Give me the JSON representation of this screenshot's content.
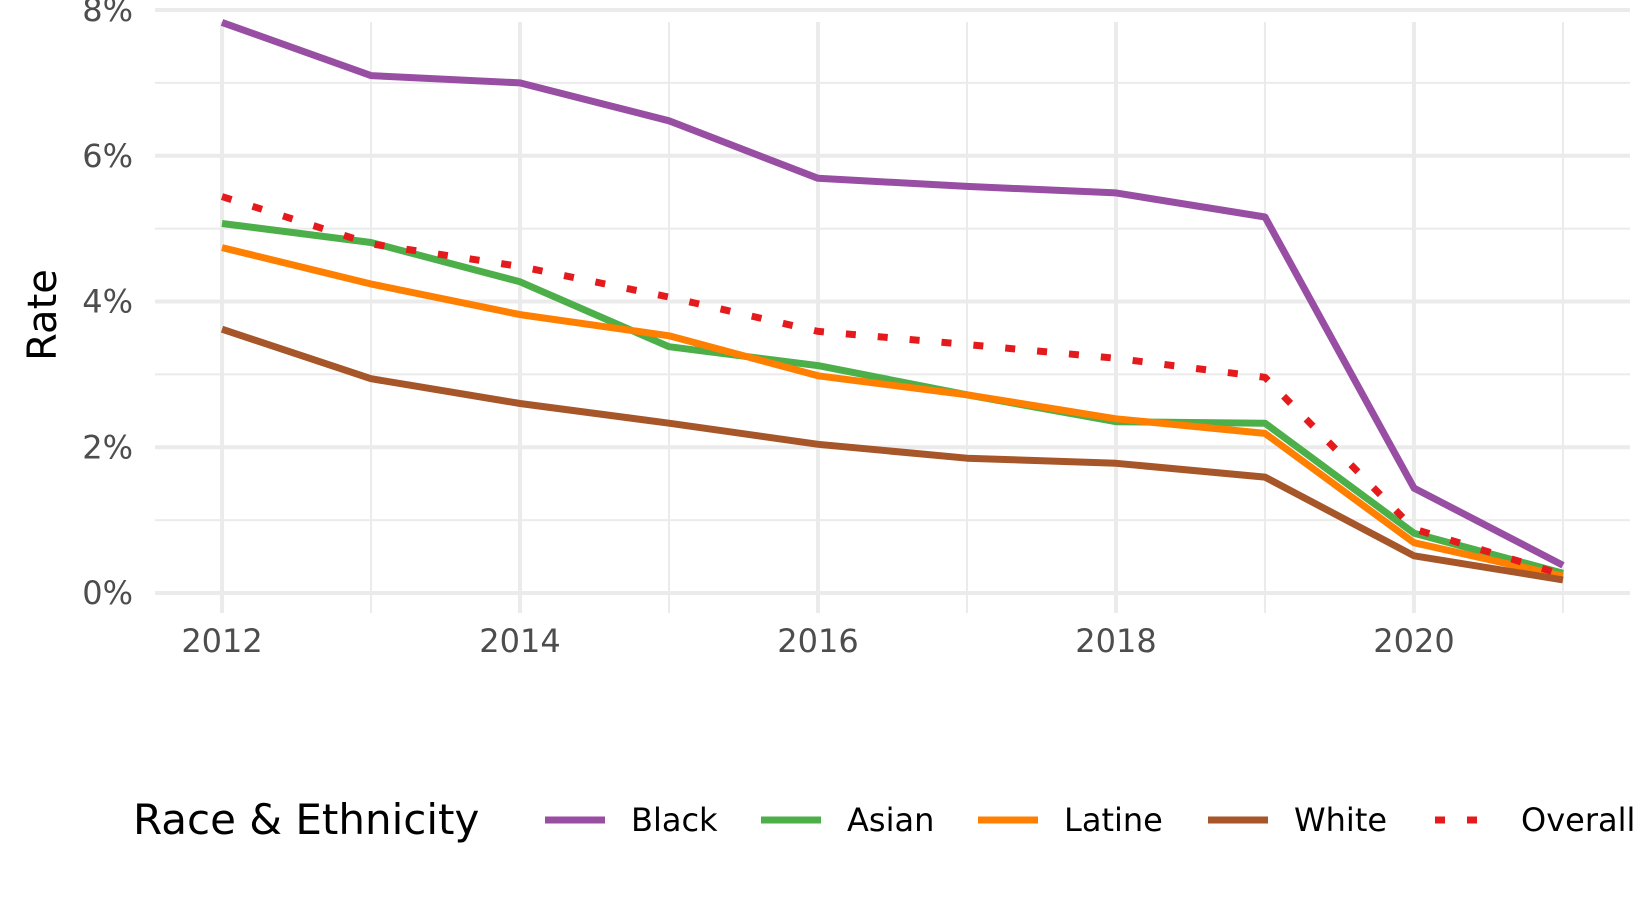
{
  "chart_data": {
    "type": "line",
    "title": "",
    "xlabel": "",
    "ylabel": "Rate",
    "x": [
      2012,
      2013,
      2014,
      2015,
      2016,
      2017,
      2018,
      2019,
      2020,
      2021
    ],
    "x_ticks": [
      "2012",
      "2014",
      "2016",
      "2018",
      "2020"
    ],
    "y_ticks": [
      "0%",
      "2%",
      "4%",
      "6%",
      "8%"
    ],
    "xlim": [
      2011.55,
      2021.45
    ],
    "ylim": [
      0,
      8
    ],
    "grid": true,
    "legend": {
      "title": "Race & Ethnicity",
      "position": "bottom"
    },
    "series": [
      {
        "name": "Black",
        "color": "#984ea3",
        "style": "solid",
        "values": [
          7.83,
          7.1,
          7.0,
          6.48,
          5.69,
          5.58,
          5.49,
          5.16,
          1.44,
          0.38
        ]
      },
      {
        "name": "Asian",
        "color": "#4daf4a",
        "style": "solid",
        "values": [
          5.07,
          4.81,
          4.27,
          3.38,
          3.12,
          2.72,
          2.35,
          2.33,
          0.82,
          0.27
        ]
      },
      {
        "name": "Latine",
        "color": "#ff7f00",
        "style": "solid",
        "values": [
          4.74,
          4.24,
          3.82,
          3.53,
          2.98,
          2.72,
          2.39,
          2.19,
          0.69,
          0.23
        ]
      },
      {
        "name": "White",
        "color": "#a65628",
        "style": "solid",
        "values": [
          3.62,
          2.94,
          2.6,
          2.33,
          2.04,
          1.85,
          1.78,
          1.59,
          0.51,
          0.18
        ]
      },
      {
        "name": "Overall",
        "color": "#e41a1c",
        "style": "dotted",
        "values": [
          5.44,
          4.79,
          4.48,
          4.06,
          3.59,
          3.41,
          3.22,
          2.96,
          0.88,
          0.25
        ]
      }
    ]
  }
}
